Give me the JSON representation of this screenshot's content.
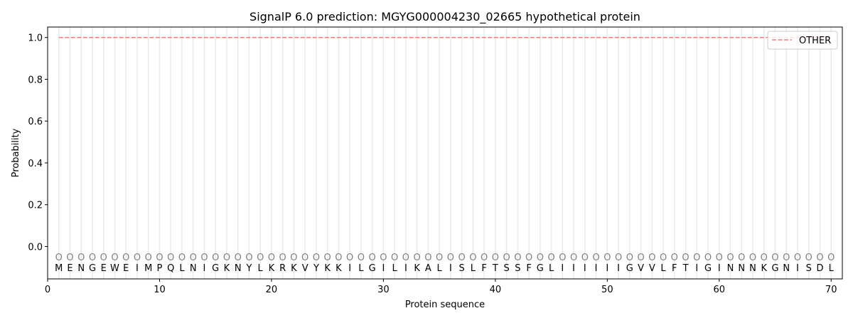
{
  "chart_data": {
    "type": "line",
    "title": "SignalP 6.0 prediction: MGYG000004230_02665 hypothetical protein",
    "xlabel": "Protein sequence",
    "ylabel": "Probability",
    "xlim": [
      0,
      71
    ],
    "ylim": [
      -0.155,
      1.05
    ],
    "xticks": [
      0,
      10,
      20,
      30,
      40,
      50,
      60,
      70
    ],
    "yticks": [
      0.0,
      0.2,
      0.4,
      0.6,
      0.8,
      1.0
    ],
    "ytick_labels": [
      "0.0",
      "0.2",
      "0.4",
      "0.6",
      "0.8",
      "1.0"
    ],
    "legend_position": "top-right",
    "sequence": "MENGEWEIMPQLNIGKNYLKRKVYKKILGILIKALISLFTSSFGLIIIIIIGVVLFTIGINNNKGNISDL",
    "region_label": "O",
    "series": [
      {
        "name": "OTHER",
        "color": "#f08080",
        "style": "dashed",
        "x_start": 1,
        "x_end": 70,
        "value": 1.0
      }
    ]
  }
}
